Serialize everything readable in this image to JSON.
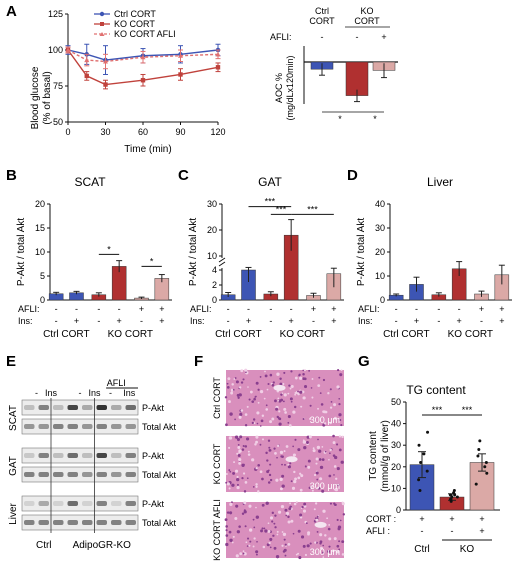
{
  "panels": {
    "A": "A",
    "B": "B",
    "C": "C",
    "D": "D",
    "E": "E",
    "F": "F",
    "G": "G"
  },
  "colors": {
    "ctrl": "#3d55b4",
    "ko": "#b03030",
    "afli": "#dba9a6",
    "ko_line": "#c0423c",
    "afli_line": "#e07070"
  },
  "A_left": {
    "chart_type": "line",
    "ylabel_1": "Blood glucose",
    "ylabel_2": "(% of basal)",
    "xlabel": "Time (min)",
    "x_ticks": [
      "0",
      "30",
      "60",
      "90",
      "120"
    ],
    "y_ticks": [
      "50",
      "75",
      "100",
      "125"
    ],
    "legend": [
      "Ctrl CORT",
      "KO CORT",
      "KO CORT AFLI"
    ]
  },
  "A_right": {
    "chart_type": "bar",
    "header_ctrl_1": "Ctrl",
    "header_ctrl_2": "CORT",
    "header_ko_1": "KO",
    "header_ko_2": "CORT",
    "afli_label": "AFLI:",
    "afli_marks": [
      "-",
      "-",
      "+"
    ],
    "ylabel_1": "AOC %",
    "ylabel_2": "(mg/dLx120min)",
    "star1": "*",
    "star2": "*"
  },
  "scat": {
    "title": "SCAT",
    "ylabel": "P-Akt / total Akt",
    "y_ticks": [
      "0",
      "5",
      "10",
      "15",
      "20"
    ],
    "stars": [
      "*",
      "*"
    ]
  },
  "gat": {
    "title": "GAT",
    "ylabel": "P-Akt / total Akt",
    "y_ticks_low": [
      "0",
      "2",
      "4"
    ],
    "y_ticks_high": [
      "10",
      "20",
      "30"
    ],
    "stars": [
      "***",
      "***",
      "***"
    ]
  },
  "liver": {
    "title": "Liver",
    "ylabel": "P-Akt / total Akt",
    "y_ticks": [
      "0",
      "10",
      "20",
      "30",
      "40"
    ]
  },
  "bar_rows": {
    "afli": "AFLI:",
    "ins": "Ins:",
    "afli_marks": [
      "-",
      "-",
      "-",
      "-",
      "+",
      "+"
    ],
    "ins_marks": [
      "-",
      "+",
      "-",
      "+",
      "-",
      "+"
    ],
    "group_ctrl": "Ctrl CORT",
    "group_ko": "KO CORT"
  },
  "blot": {
    "dash": "-",
    "ins": "Ins",
    "afli": "AFLI",
    "tissues": [
      "SCAT",
      "GAT",
      "Liver"
    ],
    "bands": [
      "P-Akt",
      "Total Akt"
    ],
    "ctrl": "Ctrl",
    "ko": "AdipoGR-KO"
  },
  "histo": {
    "labels": [
      "Ctrl CORT",
      "KO CORT",
      "KO CORT AFLI"
    ],
    "scale": "300 μm"
  },
  "tg": {
    "chart_type": "bar",
    "title": "TG content",
    "ylabel_1": "TG content",
    "ylabel_2": "(mmol/g of liver)",
    "y_ticks": [
      "0",
      "10",
      "20",
      "30",
      "40",
      "50"
    ],
    "stars": [
      "***",
      "***"
    ],
    "cort_label": "CORT :",
    "afli_label": "AFLI :",
    "cort_marks": [
      "+",
      "+",
      "+"
    ],
    "afli_marks": [
      "-",
      "-",
      "+"
    ],
    "ctrl": "Ctrl",
    "ko": "KO"
  },
  "chart_data": [
    {
      "type": "line",
      "ylabel": "Blood glucose (% of basal)",
      "xlabel": "Time (min)",
      "ylim": [
        50,
        125
      ],
      "xlim": [
        0,
        120
      ],
      "series": [
        {
          "name": "Ctrl CORT",
          "x": [
            0,
            15,
            30,
            60,
            90,
            120
          ],
          "y": [
            100,
            97,
            93,
            96,
            97,
            100
          ],
          "err": [
            3,
            7,
            10,
            5,
            6,
            4
          ]
        },
        {
          "name": "KO CORT",
          "x": [
            0,
            15,
            30,
            60,
            90,
            120
          ],
          "y": [
            100,
            82,
            76,
            79,
            83,
            88
          ],
          "err": [
            2,
            3,
            3,
            4,
            4,
            3
          ]
        },
        {
          "name": "KO CORT AFLI",
          "x": [
            0,
            15,
            30,
            60,
            90,
            120
          ],
          "y": [
            100,
            93,
            92,
            95,
            96,
            97
          ],
          "err": [
            2,
            4,
            5,
            4,
            4,
            3
          ]
        }
      ]
    },
    {
      "type": "bar",
      "ylabel": "AOC % (mg/dLx120min)",
      "categories": [
        "Ctrl CORT",
        "KO CORT",
        "KO CORT AFLI"
      ],
      "values": [
        -6,
        -28,
        -7
      ],
      "err": [
        5,
        5,
        6
      ]
    },
    {
      "type": "bar",
      "title": "SCAT",
      "ylabel": "P-Akt / total Akt",
      "ylim": [
        0,
        20
      ],
      "categories": [
        "Ctrl CORT -Ins",
        "Ctrl CORT +Ins",
        "KO CORT -Ins",
        "KO CORT +Ins",
        "KO CORT AFLI -Ins",
        "KO CORT AFLI +Ins"
      ],
      "values": [
        1.3,
        1.5,
        1.1,
        7.0,
        0.4,
        4.5
      ],
      "err": [
        0.3,
        0.3,
        0.4,
        1.2,
        0.2,
        0.8
      ]
    },
    {
      "type": "bar",
      "title": "GAT",
      "ylabel": "P-Akt / total Akt",
      "categories": [
        "Ctrl CORT -Ins",
        "Ctrl CORT +Ins",
        "KO CORT -Ins",
        "KO CORT +Ins",
        "KO CORT AFLI -Ins",
        "KO CORT AFLI +Ins"
      ],
      "values": [
        0.7,
        4.0,
        0.8,
        18,
        0.6,
        3.5
      ],
      "err": [
        0.3,
        1.6,
        0.3,
        6,
        0.3,
        1.8
      ]
    },
    {
      "type": "bar",
      "title": "Liver",
      "ylabel": "P-Akt / total Akt",
      "ylim": [
        0,
        40
      ],
      "categories": [
        "Ctrl CORT -Ins",
        "Ctrl CORT +Ins",
        "KO CORT -Ins",
        "KO CORT +Ins",
        "KO CORT AFLI -Ins",
        "KO CORT AFLI +Ins"
      ],
      "values": [
        2.0,
        6.5,
        2.2,
        13,
        2.5,
        10.5
      ],
      "err": [
        0.5,
        3,
        0.8,
        3,
        1.2,
        4
      ]
    },
    {
      "type": "bar",
      "title": "TG content",
      "ylabel": "TG content (mmol/g of liver)",
      "ylim": [
        0,
        50
      ],
      "categories": [
        "Ctrl CORT",
        "KO CORT",
        "KO CORT AFLI"
      ],
      "values": [
        21,
        6,
        22
      ],
      "err": [
        6,
        1.5,
        4
      ]
    }
  ]
}
